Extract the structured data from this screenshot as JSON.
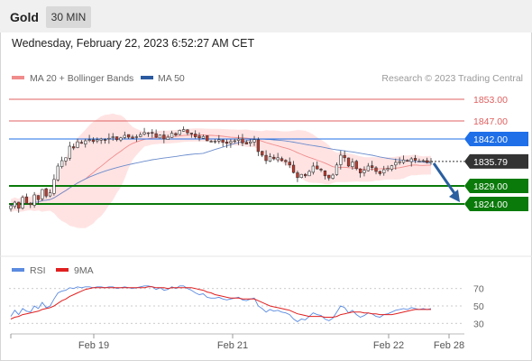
{
  "header": {
    "instrument": "Gold",
    "timeframe": "30 MIN",
    "datetime": "Wednesday, February 22, 2023 6:52:27 AM CET"
  },
  "legend": {
    "items": [
      {
        "label": "MA 20 + Bollinger Bands",
        "color": "#f08c8c"
      },
      {
        "label": "MA 50",
        "color": "#2b5aa0"
      }
    ],
    "copyright": "Research © 2023 Trading Central"
  },
  "colors": {
    "up": "#ffffff",
    "down": "#c0392b",
    "candle_outline": "#333333",
    "resistance": "#e06060",
    "pivot": "#1e6fe8",
    "support": "#0a7a0a",
    "current": "#333333",
    "bollinger_fill": "#ffe0e0",
    "ma20": "#f08c8c",
    "ma50": "#6b8ccc",
    "arrow": "#2a5fa0",
    "rsi": "#5b8be0",
    "rsi_ma": "#e02020"
  },
  "chart_data": [
    {
      "type": "candlestick",
      "title": "Gold 30 MIN",
      "x_labels": [
        "Feb 19",
        "Feb 21",
        "Feb 22",
        "Feb 28"
      ],
      "ylim": [
        1815,
        1856
      ],
      "levels": [
        {
          "label": "1853.00",
          "value": 1853.0,
          "kind": "resistance"
        },
        {
          "label": "1847.00",
          "value": 1847.0,
          "kind": "resistance"
        },
        {
          "label": "1842.00",
          "value": 1842.0,
          "kind": "pivot"
        },
        {
          "label": "1835.79",
          "value": 1835.79,
          "kind": "current"
        },
        {
          "label": "1829.00",
          "value": 1829.0,
          "kind": "support"
        },
        {
          "label": "1824.00",
          "value": 1824.0,
          "kind": "support"
        }
      ],
      "forecast_arrow": {
        "from": 1835.79,
        "to": 1824.0
      },
      "series": [
        {
          "name": "MA 20 + Bollinger Bands"
        },
        {
          "name": "MA 50"
        }
      ],
      "closes": [
        1823.5,
        1824.5,
        1822.8,
        1825.8,
        1824.2,
        1823.8,
        1826.5,
        1825.2,
        1828.0,
        1826.2,
        1827.1,
        1830.8,
        1834.5,
        1836.0,
        1836.8,
        1840.0,
        1839.5,
        1841.2,
        1840.8,
        1841.5,
        1841.8,
        1841.3,
        1841.8,
        1842.0,
        1841.8,
        1842.2,
        1842.6,
        1841.8,
        1842.3,
        1843.0,
        1842.5,
        1842.2,
        1842.6,
        1843.2,
        1843.8,
        1843.7,
        1843.6,
        1842.5,
        1843.1,
        1842.0,
        1842.5,
        1843.6,
        1843.1,
        1844.4,
        1844.6,
        1843.7,
        1843.4,
        1842.6,
        1842.3,
        1842.7,
        1841.5,
        1841.2,
        1841.4,
        1841.8,
        1841.1,
        1840.8,
        1841.3,
        1841.5,
        1842.0,
        1840.9,
        1840.6,
        1841.2,
        1841.8,
        1838.5,
        1837.5,
        1836.0,
        1837.1,
        1836.5,
        1836.8,
        1836.0,
        1835.7,
        1834.8,
        1832.7,
        1831.3,
        1832.2,
        1831.8,
        1833.0,
        1834.5,
        1833.7,
        1833.4,
        1831.8,
        1831.2,
        1832.0,
        1834.8,
        1837.5,
        1836.8,
        1834.5,
        1835.6,
        1833.8,
        1832.6,
        1833.3,
        1834.5,
        1834.1,
        1833.0,
        1832.4,
        1833.5,
        1833.8,
        1834.6,
        1835.5,
        1835.7,
        1836.2,
        1835.8,
        1836.5,
        1836.1,
        1835.9,
        1836.0,
        1835.5,
        1835.79
      ],
      "rsi": {
        "labels": [
          "RSI",
          "9MA"
        ],
        "ticks": [
          70,
          50,
          30
        ],
        "ylim": [
          22,
          78
        ],
        "rsi_values": [
          38,
          45,
          40,
          47,
          44,
          43,
          50,
          47,
          54,
          48,
          50,
          58,
          65,
          67,
          68,
          71,
          70,
          72,
          71,
          72,
          72,
          71,
          72,
          72,
          71,
          72,
          72,
          70,
          71,
          72,
          71,
          70,
          71,
          72,
          73,
          73,
          72,
          69,
          71,
          68,
          69,
          72,
          70,
          73,
          73,
          70,
          68,
          65,
          63,
          64,
          60,
          59,
          59,
          60,
          58,
          57,
          58,
          59,
          60,
          57,
          56,
          58,
          59,
          50,
          47,
          43,
          46,
          44,
          45,
          43,
          42,
          40,
          35,
          32,
          35,
          34,
          38,
          42,
          40,
          39,
          35,
          33,
          36,
          43,
          50,
          48,
          42,
          45,
          40,
          37,
          39,
          42,
          41,
          38,
          37,
          40,
          41,
          43,
          45,
          46,
          47,
          46,
          48,
          47,
          46,
          47,
          46,
          47
        ],
        "ma_values": [
          35,
          37,
          38,
          40,
          41,
          42,
          43,
          44,
          46,
          47,
          48,
          50,
          53,
          56,
          58,
          61,
          63,
          65,
          67,
          69,
          70,
          71,
          71,
          71,
          71,
          71,
          71,
          71,
          71,
          71,
          71,
          71,
          71,
          71,
          71,
          72,
          72,
          71,
          71,
          71,
          70,
          71,
          71,
          71,
          71,
          71,
          71,
          70,
          69,
          68,
          66,
          65,
          63,
          62,
          61,
          60,
          59,
          59,
          59,
          58,
          58,
          58,
          58,
          56,
          54,
          52,
          50,
          49,
          48,
          47,
          46,
          45,
          43,
          41,
          40,
          39,
          38,
          38,
          38,
          38,
          37,
          37,
          37,
          38,
          40,
          41,
          42,
          43,
          43,
          43,
          42,
          42,
          41,
          41,
          40,
          40,
          40,
          40,
          41,
          42,
          43,
          44,
          45,
          46,
          46,
          46,
          46,
          46
        ]
      }
    }
  ]
}
